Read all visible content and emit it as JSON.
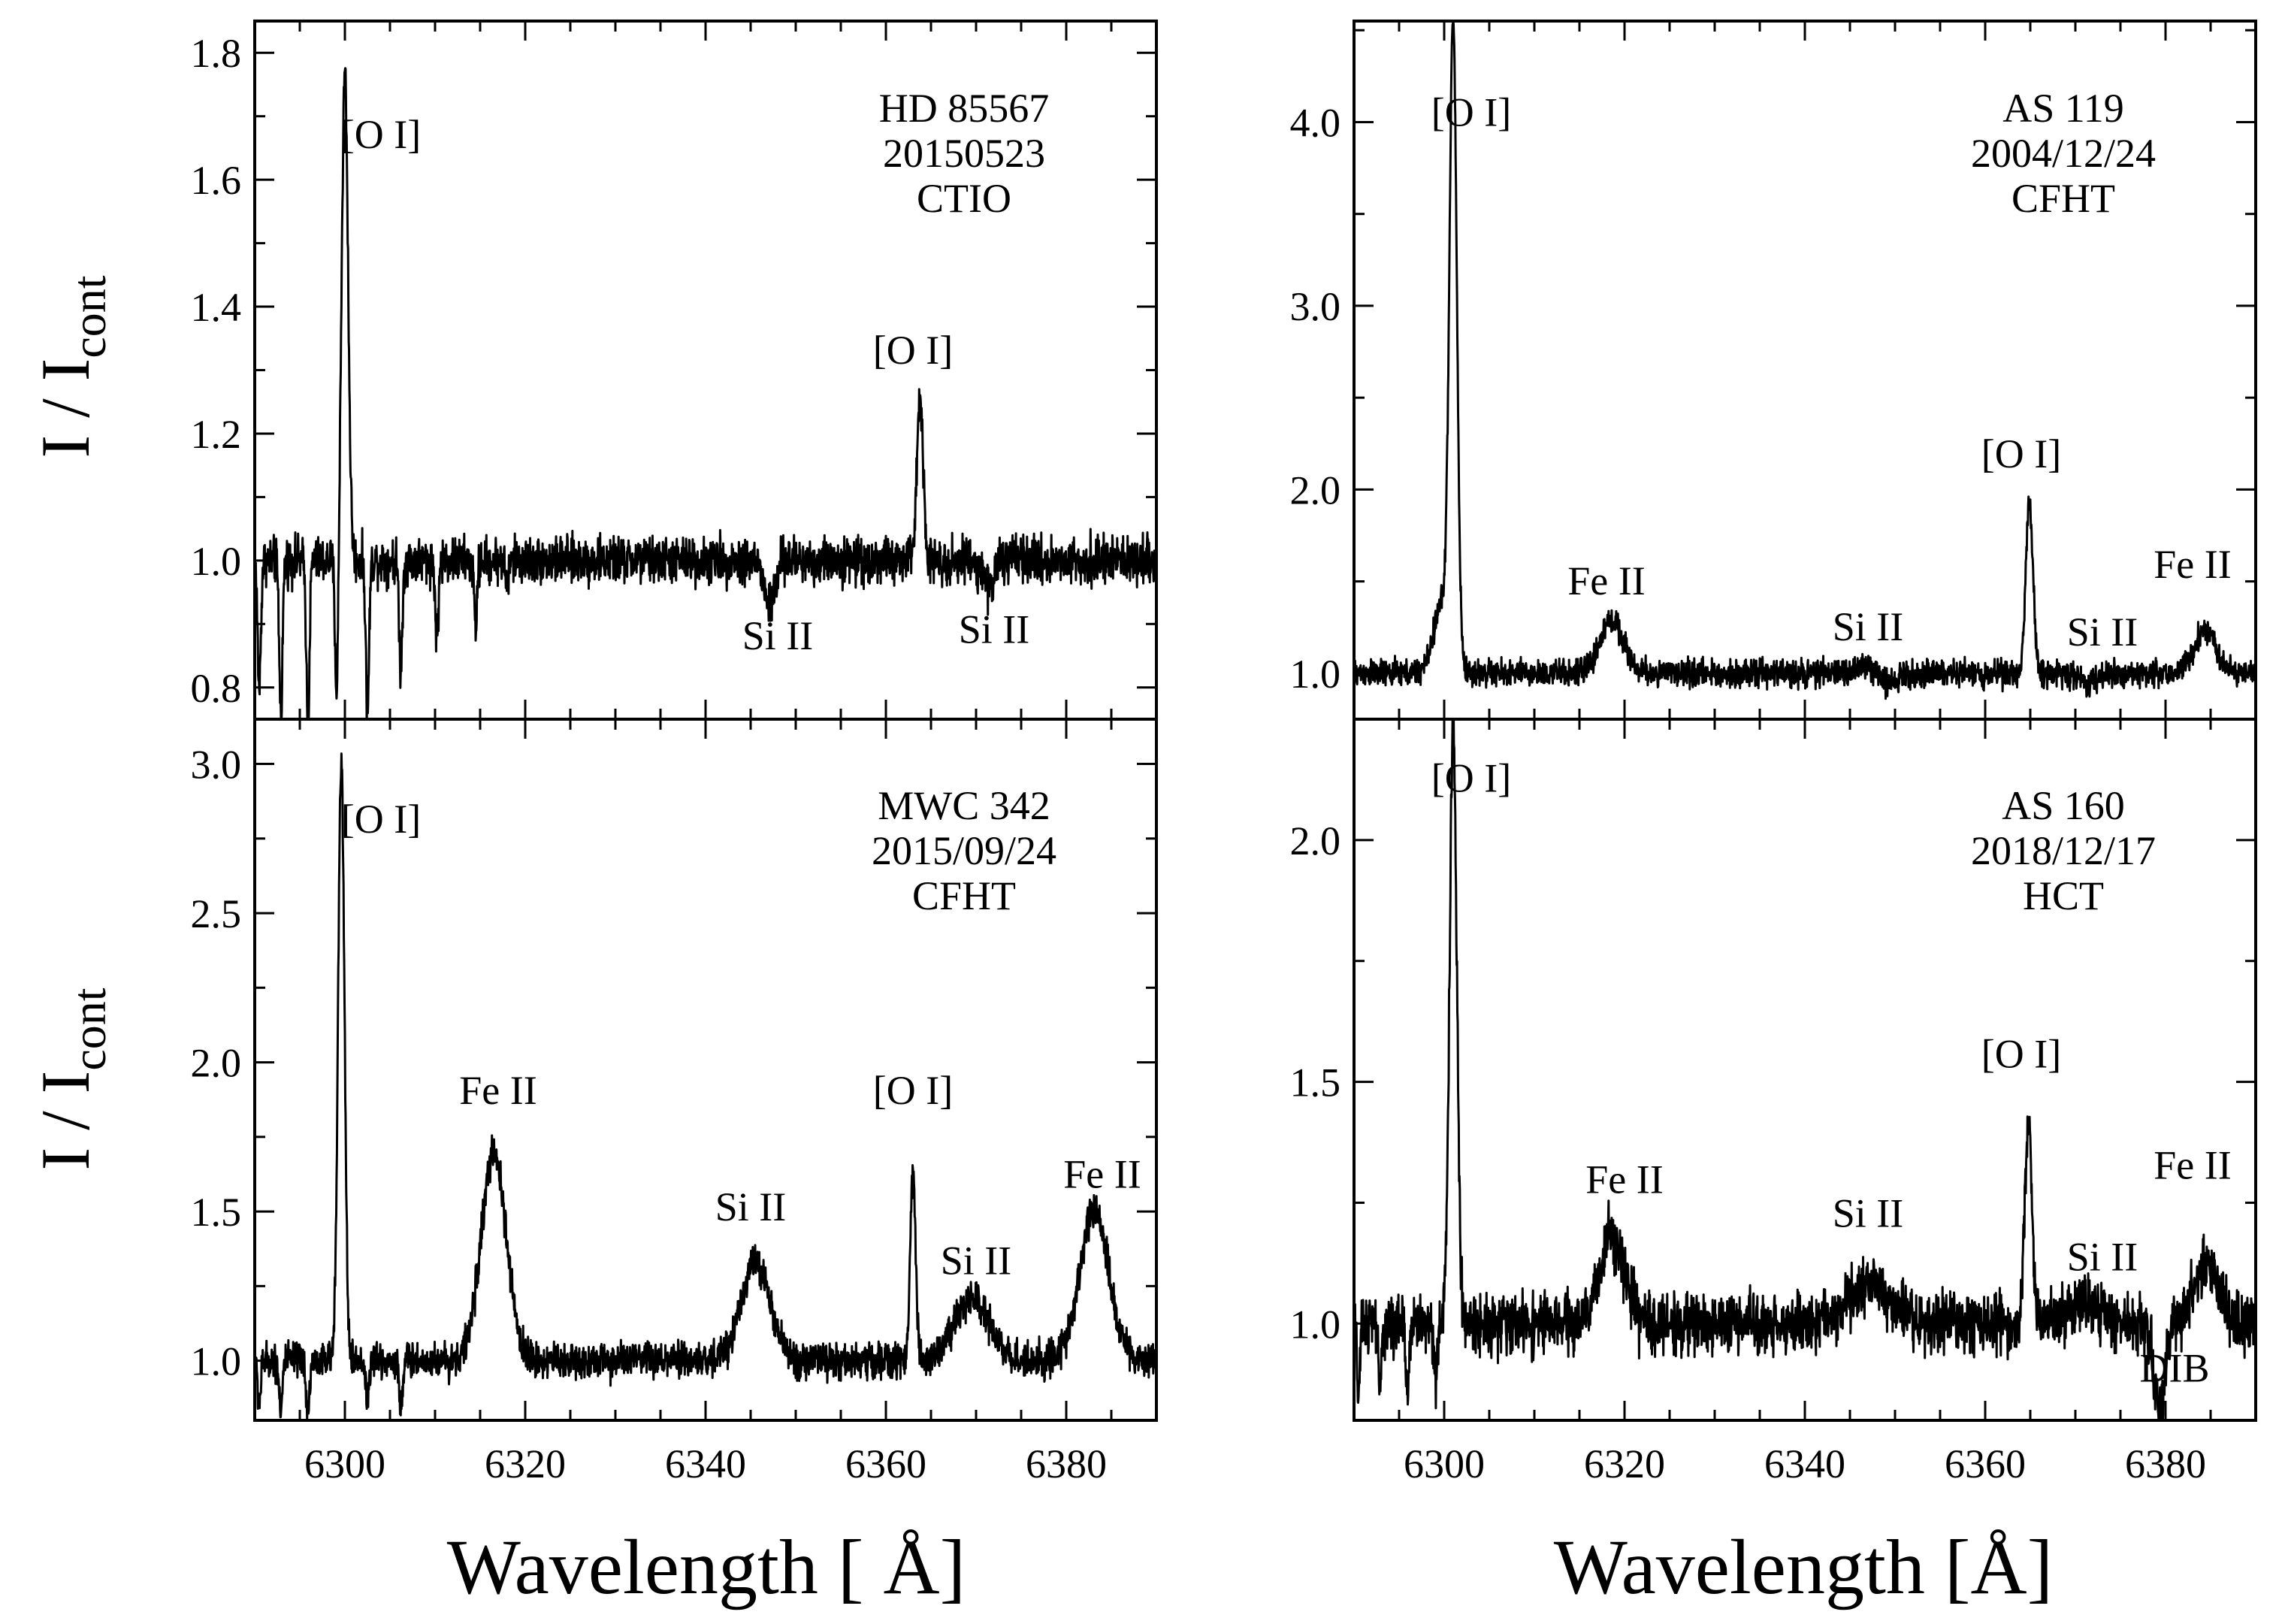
{
  "figure": {
    "ylabel_main": "I / I",
    "ylabel_sub": "cont",
    "xlabel_left": "Wavelength [ Å]",
    "xlabel_right": "Wavelength [Å]"
  },
  "chart_data": [
    {
      "type": "line",
      "panel": "top-left",
      "star": "HD 85567",
      "date": "20150523",
      "observatory": "CTIO",
      "xlim": [
        6290,
        6390
      ],
      "ylim": [
        0.75,
        1.85
      ],
      "yticks": [
        0.8,
        1.0,
        1.2,
        1.4,
        1.6,
        1.8
      ],
      "ytick_labels": [
        "0.8",
        "1.0",
        "1.2",
        "1.4",
        "1.6",
        "1.8"
      ],
      "noise": 0.03,
      "features": [
        {
          "center": 6300.0,
          "amp": 0.77,
          "width": 0.35
        },
        {
          "center": 6363.8,
          "amp": 0.26,
          "width": 0.35
        },
        {
          "center": 6347.1,
          "amp": -0.07,
          "width": 0.6
        },
        {
          "center": 6371.4,
          "amp": -0.04,
          "width": 0.6
        }
      ],
      "telluric": [
        {
          "center": 6290.5,
          "depth": 0.2
        },
        {
          "center": 6292.9,
          "depth": 0.24
        },
        {
          "center": 6295.9,
          "depth": 0.25
        },
        {
          "center": 6299.1,
          "depth": 0.23
        },
        {
          "center": 6302.5,
          "depth": 0.24
        },
        {
          "center": 6306.2,
          "depth": 0.17
        },
        {
          "center": 6310.2,
          "depth": 0.12
        },
        {
          "center": 6314.5,
          "depth": 0.1
        },
        {
          "center": 6318.0,
          "depth": 0.04
        }
      ],
      "annotations": [
        {
          "text": "[O I]",
          "x": 6304,
          "y": 1.65
        },
        {
          "text": "[O I]",
          "x": 6363,
          "y": 1.31
        },
        {
          "text": "Si II",
          "x": 6348,
          "y": 0.86
        },
        {
          "text": "Si II",
          "x": 6372,
          "y": 0.87
        }
      ]
    },
    {
      "type": "line",
      "panel": "top-right",
      "star": "AS 119",
      "date": "2004/12/24",
      "observatory": "CFHT",
      "xlim": [
        6290,
        6390
      ],
      "ylim": [
        0.75,
        4.55
      ],
      "yticks": [
        1.0,
        2.0,
        3.0,
        4.0
      ],
      "ytick_labels": [
        "1.0",
        "2.0",
        "3.0",
        "4.0"
      ],
      "noise": 0.06,
      "features": [
        {
          "center": 6301.0,
          "amp": 3.35,
          "width": 0.4
        },
        {
          "center": 6299.9,
          "amp": 0.4,
          "width": 1.0
        },
        {
          "center": 6318.6,
          "amp": 0.29,
          "width": 1.3
        },
        {
          "center": 6364.9,
          "amp": 0.93,
          "width": 0.4
        },
        {
          "center": 6384.4,
          "amp": 0.22,
          "width": 1.3
        },
        {
          "center": 6347.1,
          "amp": 0.04,
          "width": 1.5
        },
        {
          "center": 6349.0,
          "amp": -0.06,
          "width": 1.0
        },
        {
          "center": 6371.4,
          "amp": -0.05,
          "width": 1.0
        }
      ],
      "telluric": [],
      "annotations": [
        {
          "text": "[O I]",
          "x": 6303,
          "y": 3.98
        },
        {
          "text": "Fe II",
          "x": 6318,
          "y": 1.43
        },
        {
          "text": "[O I]",
          "x": 6364,
          "y": 2.12
        },
        {
          "text": "Fe II",
          "x": 6383,
          "y": 1.52
        },
        {
          "text": "Si II",
          "x": 6347,
          "y": 1.18
        },
        {
          "text": "Si II",
          "x": 6373,
          "y": 1.15
        }
      ]
    },
    {
      "type": "line",
      "panel": "bottom-left",
      "star": "MWC 342",
      "date": "2015/09/24",
      "observatory": "CFHT",
      "xlim": [
        6290,
        6390
      ],
      "ylim": [
        0.8,
        3.15
      ],
      "yticks": [
        1.0,
        1.5,
        2.0,
        2.5,
        3.0
      ],
      "ytick_labels": [
        "1.0",
        "1.5",
        "2.0",
        "2.5",
        "3.0"
      ],
      "noise": 0.05,
      "features": [
        {
          "center": 6299.6,
          "amp": 2.0,
          "width": 0.35
        },
        {
          "center": 6316.5,
          "amp": 0.69,
          "width": 1.4
        },
        {
          "center": 6345.5,
          "amp": 0.33,
          "width": 1.6
        },
        {
          "center": 6363.0,
          "amp": 0.62,
          "width": 0.3
        },
        {
          "center": 6369.5,
          "amp": 0.2,
          "width": 2.0
        },
        {
          "center": 6383.1,
          "amp": 0.5,
          "width": 1.6
        }
      ],
      "telluric": [
        {
          "center": 6290.5,
          "depth": 0.14
        },
        {
          "center": 6292.9,
          "depth": 0.16
        },
        {
          "center": 6295.9,
          "depth": 0.18
        },
        {
          "center": 6302.5,
          "depth": 0.14
        },
        {
          "center": 6306.2,
          "depth": 0.16
        }
      ],
      "annotations": [
        {
          "text": "[O I]",
          "x": 6304,
          "y": 2.77
        },
        {
          "text": "Fe II",
          "x": 6317,
          "y": 1.86
        },
        {
          "text": "Si II",
          "x": 6345,
          "y": 1.47
        },
        {
          "text": "[O I]",
          "x": 6363,
          "y": 1.86
        },
        {
          "text": "Si II",
          "x": 6370,
          "y": 1.29
        },
        {
          "text": "Fe II",
          "x": 6384,
          "y": 1.58
        }
      ]
    },
    {
      "type": "line",
      "panel": "bottom-right",
      "star": "AS 160",
      "date": "2018/12/17",
      "observatory": "HCT",
      "xlim": [
        6290,
        6390
      ],
      "ylim": [
        0.8,
        2.25
      ],
      "yticks": [
        1.0,
        1.5,
        2.0
      ],
      "ytick_labels": [
        "1.0",
        "1.5",
        "2.0"
      ],
      "noise": 0.05,
      "features": [
        {
          "center": 6301.0,
          "amp": 1.23,
          "width": 0.4
        },
        {
          "center": 6318.6,
          "amp": 0.19,
          "width": 1.3
        },
        {
          "center": 6347.0,
          "amp": 0.08,
          "width": 2.2
        },
        {
          "center": 6364.8,
          "amp": 0.42,
          "width": 0.4
        },
        {
          "center": 6371.0,
          "amp": 0.04,
          "width": 2.0
        },
        {
          "center": 6384.5,
          "amp": 0.12,
          "width": 1.4
        },
        {
          "center": 6379.3,
          "amp": -0.18,
          "width": 0.6
        }
      ],
      "telluric": [
        {
          "center": 6290.5,
          "depth": 0.14
        },
        {
          "center": 6292.9,
          "depth": 0.14
        },
        {
          "center": 6295.9,
          "depth": 0.15
        },
        {
          "center": 6299.1,
          "depth": 0.12
        }
      ],
      "annotations": [
        {
          "text": "[O I]",
          "x": 6303,
          "y": 2.1
        },
        {
          "text": "Fe II",
          "x": 6320,
          "y": 1.27
        },
        {
          "text": "Si II",
          "x": 6347,
          "y": 1.2
        },
        {
          "text": "[O I]",
          "x": 6364,
          "y": 1.53
        },
        {
          "text": "Si II",
          "x": 6373,
          "y": 1.11
        },
        {
          "text": "DIB",
          "x": 6381,
          "y": 0.88
        },
        {
          "text": "Fe II",
          "x": 6383,
          "y": 1.3
        }
      ]
    }
  ]
}
